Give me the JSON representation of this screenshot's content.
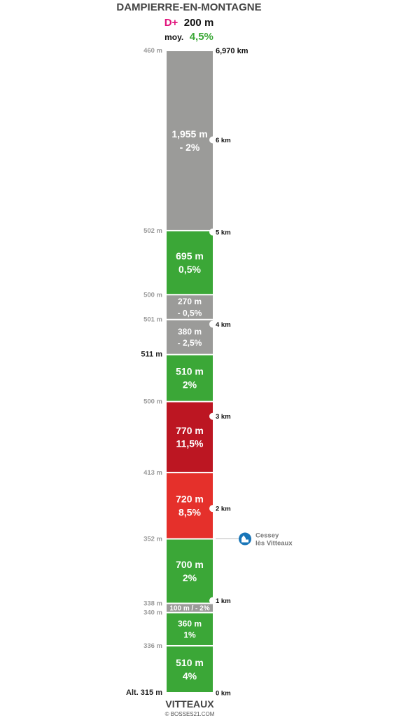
{
  "header": {
    "summit_name": "DAMPIERRE-EN-MONTAGNE",
    "climb_prefix": "D+",
    "climb_value": "200 m",
    "avg_prefix": "moy.",
    "avg_value": "4,5%"
  },
  "footer": {
    "start_name": "VITTEAUX",
    "credit": "© BOSSES21.COM"
  },
  "colors": {
    "grey": "#9b9b99",
    "green": "#3ba737",
    "red": "#e5302b",
    "dark_red": "#bc1622",
    "pink": "#e0107a",
    "avg_green": "#3ba737",
    "village_blue": "#1875b8"
  },
  "chart_data": {
    "type": "bar",
    "orientation": "vertical-profile",
    "total_distance_km": 6.97,
    "total_distance_label": "6,970 km",
    "segments": [
      {
        "length_label": "510 m",
        "gradient_label": "4%",
        "length_m": 510,
        "gradient_pct": 4,
        "color": "green"
      },
      {
        "length_label": "360 m",
        "gradient_label": "1%",
        "length_m": 360,
        "gradient_pct": 1,
        "color": "green"
      },
      {
        "length_label": "100 m / - 2%",
        "gradient_label": "",
        "length_m": 100,
        "gradient_pct": -2,
        "color": "grey"
      },
      {
        "length_label": "700 m",
        "gradient_label": "2%",
        "length_m": 700,
        "gradient_pct": 2,
        "color": "green"
      },
      {
        "length_label": "720 m",
        "gradient_label": "8,5%",
        "length_m": 720,
        "gradient_pct": 8.5,
        "color": "red"
      },
      {
        "length_label": "770 m",
        "gradient_label": "11,5%",
        "length_m": 770,
        "gradient_pct": 11.5,
        "color": "dark_red"
      },
      {
        "length_label": "510 m",
        "gradient_label": "2%",
        "length_m": 510,
        "gradient_pct": 2,
        "color": "green"
      },
      {
        "length_label": "380 m",
        "gradient_label": "- 2,5%",
        "length_m": 380,
        "gradient_pct": -2.5,
        "color": "grey"
      },
      {
        "length_label": "270 m",
        "gradient_label": "- 0,5%",
        "length_m": 270,
        "gradient_pct": -0.5,
        "color": "grey"
      },
      {
        "length_label": "695 m",
        "gradient_label": "0,5%",
        "length_m": 695,
        "gradient_pct": 0.5,
        "color": "green"
      },
      {
        "length_label": "1,955 m",
        "gradient_label": "- 2%",
        "length_m": 1955,
        "gradient_pct": -2,
        "color": "grey"
      }
    ],
    "altitudes": [
      {
        "label": "Alt. 315 m",
        "at_m": 0,
        "emphasis": true
      },
      {
        "label": "336 m",
        "at_m": 510,
        "emphasis": false
      },
      {
        "label": "340 m",
        "at_m": 870,
        "emphasis": false
      },
      {
        "label": "338 m",
        "at_m": 970,
        "emphasis": false
      },
      {
        "label": "352 m",
        "at_m": 1670,
        "emphasis": false
      },
      {
        "label": "413 m",
        "at_m": 2390,
        "emphasis": false
      },
      {
        "label": "500 m",
        "at_m": 3160,
        "emphasis": false
      },
      {
        "label": "511 m",
        "at_m": 3670,
        "emphasis": true
      },
      {
        "label": "501 m",
        "at_m": 4050,
        "emphasis": false
      },
      {
        "label": "500 m",
        "at_m": 4320,
        "emphasis": false
      },
      {
        "label": "502 m",
        "at_m": 5015,
        "emphasis": false
      },
      {
        "label": "460 m",
        "at_m": 6970,
        "emphasis": false
      }
    ],
    "km_markers": [
      {
        "label": "0 km",
        "km": 0
      },
      {
        "label": "1 km",
        "km": 1
      },
      {
        "label": "2 km",
        "km": 2
      },
      {
        "label": "3 km",
        "km": 3
      },
      {
        "label": "4 km",
        "km": 4
      },
      {
        "label": "5 km",
        "km": 5
      },
      {
        "label": "6 km",
        "km": 6
      }
    ],
    "villages": [
      {
        "line1": "Cessey",
        "line2": "lès Vitteaux",
        "at_m": 1670,
        "icon": "church-icon"
      }
    ]
  }
}
